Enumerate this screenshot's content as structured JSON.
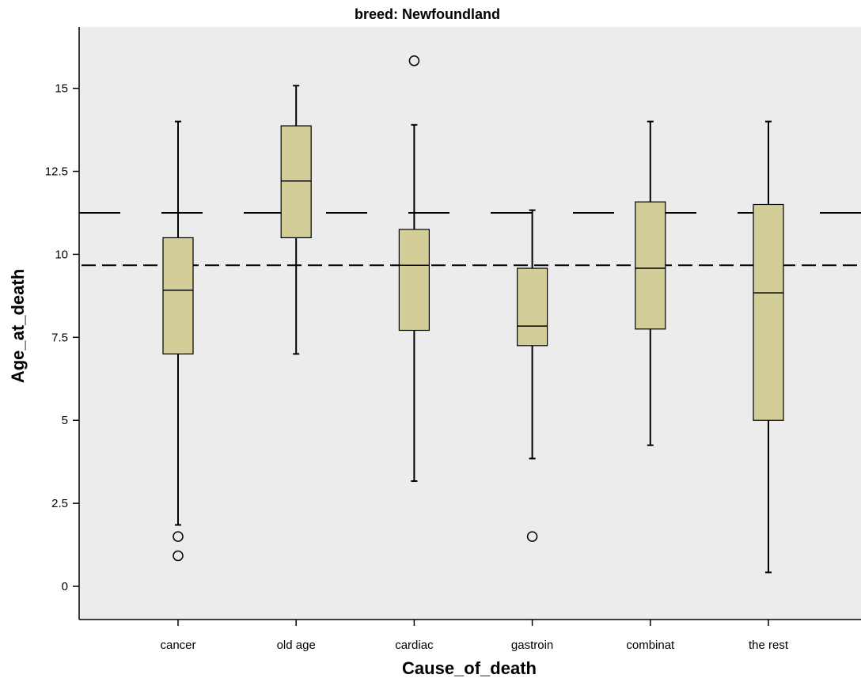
{
  "chart_data": {
    "type": "boxplot",
    "title": "breed: Newfoundland",
    "xlabel": "Cause_of_death",
    "ylabel": "Age_at_death",
    "ylim": [
      -1.0,
      16.85
    ],
    "yticks": [
      0,
      2.5,
      5,
      7.5,
      10,
      12.5,
      15
    ],
    "ytick_labels": [
      "0",
      "2.5",
      "5",
      "7.5",
      "10",
      "12.5",
      "15"
    ],
    "categories": [
      "cancer",
      "old age",
      "cardiac",
      "gastroin",
      "combinat",
      "the rest"
    ],
    "boxes": [
      {
        "category": "cancer",
        "whisker_low": 1.85,
        "q1": 7.0,
        "median": 8.92,
        "q3": 10.5,
        "whisker_high": 14.0,
        "outliers": [
          1.5,
          0.92
        ]
      },
      {
        "category": "old age",
        "whisker_low": 7.0,
        "q1": 10.5,
        "median": 12.21,
        "q3": 13.87,
        "whisker_high": 15.08,
        "outliers": []
      },
      {
        "category": "cardiac",
        "whisker_low": 3.17,
        "q1": 7.71,
        "median": 9.67,
        "q3": 10.75,
        "whisker_high": 13.9,
        "outliers": [
          15.83
        ]
      },
      {
        "category": "gastroin",
        "whisker_low": 3.85,
        "q1": 7.25,
        "median": 7.84,
        "q3": 9.58,
        "whisker_high": 11.33,
        "outliers": [
          1.5
        ]
      },
      {
        "category": "combinat",
        "whisker_low": 4.25,
        "q1": 7.75,
        "median": 9.58,
        "q3": 11.58,
        "whisker_high": 14.0,
        "outliers": []
      },
      {
        "category": "the rest",
        "whisker_low": 0.42,
        "q1": 5.0,
        "median": 8.84,
        "q3": 11.5,
        "whisker_high": 14.0,
        "outliers": []
      }
    ],
    "reference_lines": [
      {
        "value": 11.25,
        "style": "long-dash"
      },
      {
        "value": 9.67,
        "style": "short-dash"
      }
    ],
    "grid": false,
    "colors": {
      "plot_background": "#ececec",
      "box_fill": "#d3ce98",
      "stroke": "#000000"
    }
  }
}
